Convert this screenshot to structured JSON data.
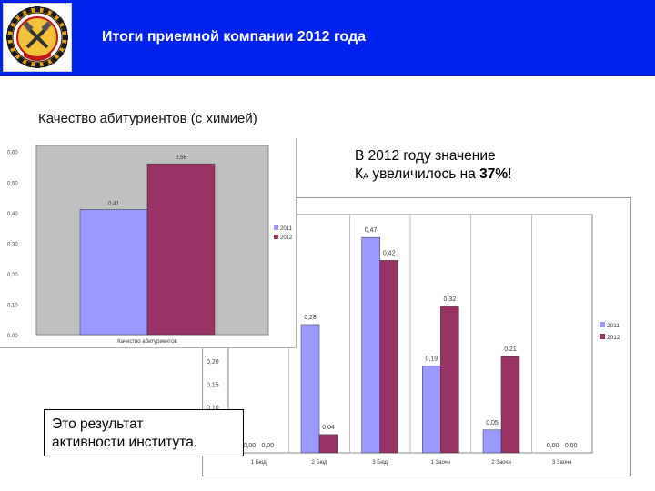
{
  "header": {
    "title": "Итоги приемной компании 2012 года",
    "logo_icon": "university-emblem-icon",
    "background_color": "#0022ee"
  },
  "subtitle": "Качество абитуриентов (с химией)",
  "note": {
    "line1": "В 2012 году значение",
    "k_letter": "К",
    "k_subscript": "А",
    "line2_text": " увеличилось на ",
    "percent": "37%",
    "exclaim": "!"
  },
  "callout": {
    "line1": "Это результат",
    "line2": "активности института."
  },
  "chart_data": [
    {
      "type": "bar",
      "categories": [
        "Качество абитуриентов"
      ],
      "series": [
        {
          "name": "2011",
          "values": [
            0.41
          ],
          "color": "#9999ff"
        },
        {
          "name": "2012",
          "values": [
            0.56
          ],
          "color": "#993366"
        }
      ],
      "y_ticks": [
        0.0,
        0.1,
        0.2,
        0.3,
        0.4,
        0.5,
        0.6
      ],
      "y_tick_labels": [
        "0,00",
        "0,10",
        "0,20",
        "0,30",
        "0,40",
        "0,50",
        "0,60"
      ],
      "bar_labels": [
        "0,41",
        "0,56"
      ],
      "ylim": [
        0,
        0.62
      ],
      "legend": "right",
      "grid": false,
      "plot_background": "#c0c0c0"
    },
    {
      "type": "bar",
      "categories": [
        "1 Бюд",
        "2 Бюд",
        "3 Бюд",
        "1 Заочн",
        "2 Заочн",
        "3 Заочн"
      ],
      "category_labels": [
        "1 Бюд",
        "2 Бюд",
        "3 Бюд",
        "1 Заочн",
        "2 Заочн",
        "3 Заочн"
      ],
      "series": [
        {
          "name": "2011",
          "values": [
            0.0,
            0.28,
            0.47,
            0.19,
            0.05,
            0.0
          ],
          "color": "#9999ff"
        },
        {
          "name": "2012",
          "values": [
            0.0,
            0.04,
            0.42,
            0.32,
            0.21,
            0.0
          ],
          "color": "#993366"
        }
      ],
      "bar_labels_2011": [
        "0,00",
        "0,28",
        "0,47",
        "0,19",
        "0,05",
        "0,00"
      ],
      "bar_labels_2012": [
        "0,00",
        "0,04",
        "0,42",
        "0,32",
        "0,21",
        "0,00"
      ],
      "y_ticks": [
        0.1,
        0.15,
        0.2
      ],
      "y_tick_labels": [
        "0,10",
        "0,15",
        "0,20"
      ],
      "ylim": [
        0,
        0.52
      ],
      "legend": "right",
      "grid": "vertical-category-dividers"
    }
  ]
}
